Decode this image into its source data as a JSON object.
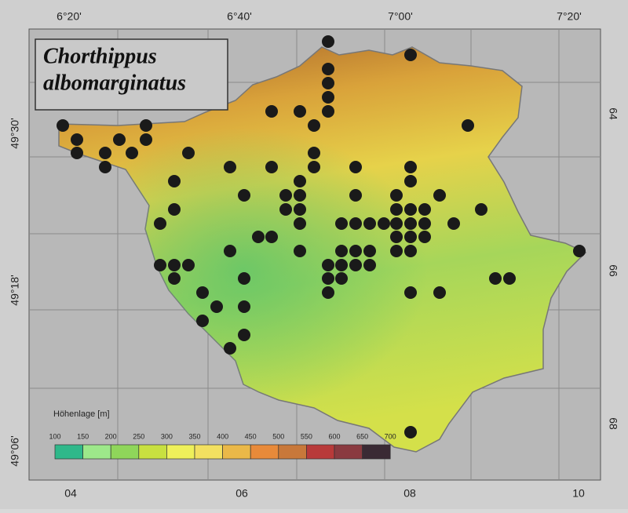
{
  "title": {
    "line1": "Chorthippus",
    "line2": "albomarginatus"
  },
  "top_labels": [
    "6°20'",
    "6°40'",
    "7°00'",
    "7°20'"
  ],
  "left_labels": [
    "49°30'",
    "49°18'",
    "49°06'"
  ],
  "right_labels": [
    "64",
    "66",
    "68"
  ],
  "bottom_labels": [
    "04",
    "06",
    "08",
    "10"
  ],
  "legend": {
    "title": "Höhenlage [m]",
    "ticks": [
      100,
      150,
      200,
      250,
      300,
      350,
      400,
      450,
      500,
      550,
      600,
      650,
      700
    ]
  }
}
